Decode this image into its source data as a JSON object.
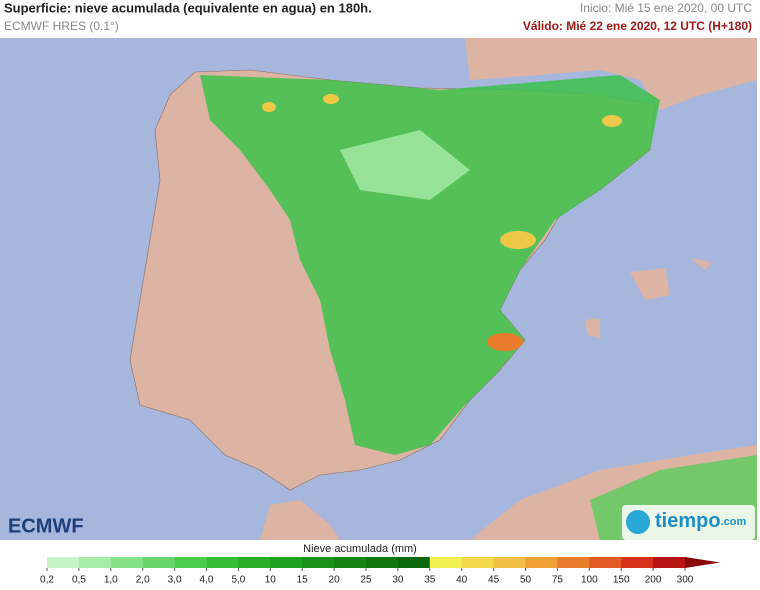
{
  "header": {
    "title": "Superficie: nieve acumulada (equivalente en agua) en 180h.",
    "model": "ECMWF HRES (0.1°)",
    "init": "Inicio: Mié 15 ene 2020, 00 UTC",
    "valid": "Válido: Mié 22 ene 2020, 12 UTC (H+180)"
  },
  "logos": {
    "left": "ECMWF",
    "right": "tiempo",
    "right_suffix": ".com"
  },
  "legend": {
    "title": "Nieve acumulada (mm)",
    "labels": [
      "0,2",
      "0,5",
      "1,0",
      "2,0",
      "3,0",
      "4,0",
      "5,0",
      "10",
      "15",
      "20",
      "25",
      "30",
      "35",
      "40",
      "45",
      "50",
      "75",
      "100",
      "150",
      "200",
      "300"
    ],
    "colors": [
      "#c8f5c8",
      "#a6eca6",
      "#86e186",
      "#68d668",
      "#4cca4c",
      "#36bd36",
      "#28ae28",
      "#20a020",
      "#1a921a",
      "#158415",
      "#107610",
      "#0c680c",
      "#f0f050",
      "#f2d84a",
      "#f2bf42",
      "#ee9f36",
      "#ea7d2c",
      "#e35a24",
      "#d6321c",
      "#b81212"
    ],
    "arrow_color": "#8a0a0a"
  }
}
